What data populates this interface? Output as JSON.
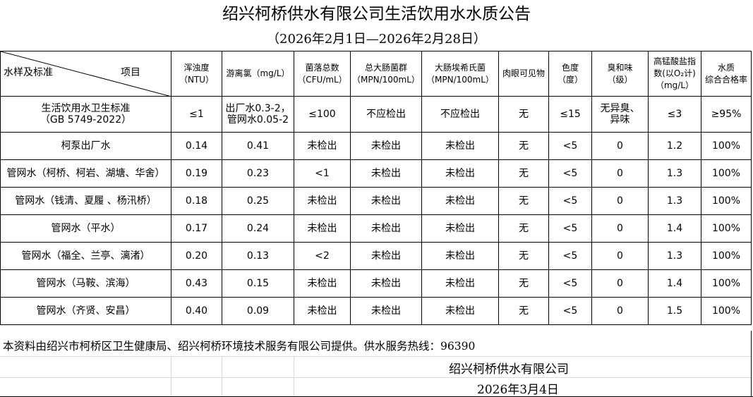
{
  "title": "绍兴柯桥供水有限公司生活饮用水水质公告",
  "subtitle": "（2026年2月1日—2026年2月28日）",
  "header": {
    "corner_left": "水样及标准",
    "corner_right": "项目",
    "columns": [
      [
        "浑浊度",
        "（NTU）"
      ],
      [
        "游离氯（mg/L）"
      ],
      [
        "菌落总数",
        "（CFU/mL）"
      ],
      [
        "总大肠菌群",
        "（MPN/100mL）"
      ],
      [
        "大肠埃希氏菌",
        "（MPN/100mL）"
      ],
      [
        "肉眼可见物"
      ],
      [
        "色度",
        "（度）"
      ],
      [
        "臭和味",
        "（级）"
      ],
      [
        "高锰酸盐指",
        "数(以O₂计)",
        "（mg/L）"
      ],
      [
        "水质",
        "综合合格率"
      ]
    ]
  },
  "standard": {
    "name": [
      "生活饮用水卫生标准",
      "（GB 5749-2022）"
    ],
    "values": [
      [
        "≤1"
      ],
      [
        "出厂水0.3-2，",
        "管网水0.05-2"
      ],
      [
        "≤100"
      ],
      [
        "不应检出"
      ],
      [
        "不应检出"
      ],
      [
        "无"
      ],
      [
        "≤15"
      ],
      [
        "无异臭、",
        "异味"
      ],
      [
        "≤3"
      ],
      [
        "≥95%"
      ]
    ]
  },
  "rows": [
    {
      "name": "柯泵出厂水",
      "values": [
        "0.14",
        "0.41",
        "未检出",
        "未检出",
        "未检出",
        "无",
        "<5",
        "0",
        "1.2",
        "100%"
      ]
    },
    {
      "name": "管网水（柯桥、柯岩、湖塘、华舍）",
      "values": [
        "0.19",
        "0.23",
        "<1",
        "未检出",
        "未检出",
        "无",
        "<5",
        "0",
        "1.3",
        "100%"
      ]
    },
    {
      "name": "管网水（钱清、夏履 、杨汛桥）",
      "values": [
        "0.18",
        "0.25",
        "未检出",
        "未检出",
        "未检出",
        "无",
        "<5",
        "0",
        "1.3",
        "100%"
      ]
    },
    {
      "name": "管网水（平水）",
      "values": [
        "0.17",
        "0.24",
        "未检出",
        "未检出",
        "未检出",
        "无",
        "<5",
        "0",
        "1.4",
        "100%"
      ]
    },
    {
      "name": "管网水（福全、兰亭、漓渚）",
      "values": [
        "0.20",
        "0.13",
        "<2",
        "未检出",
        "未检出",
        "无",
        "<5",
        "0",
        "1.3",
        "100%"
      ]
    },
    {
      "name": "管网水（马鞍、滨海）",
      "values": [
        "0.43",
        "0.15",
        "未检出",
        "未检出",
        "未检出",
        "无",
        "<5",
        "0",
        "1.4",
        "100%"
      ]
    },
    {
      "name": "管网水（齐贤、安昌）",
      "values": [
        "0.40",
        "0.09",
        "未检出",
        "未检出",
        "未检出",
        "无",
        "<5",
        "0",
        "1.5",
        "100%"
      ]
    }
  ],
  "footer": {
    "note": "本资料由绍兴市柯桥区卫生健康局、绍兴柯桥环境技术服务有限公司提供。供水服务热线：96390",
    "company": "绍兴柯桥供水有限公司",
    "date": "2026年3月4日"
  }
}
